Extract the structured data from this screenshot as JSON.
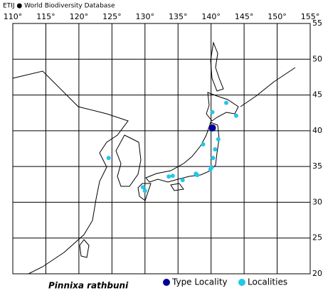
{
  "header": "ETIJ ● World Biodiversity Database",
  "species": "Pinnixa rathbuni",
  "map": {
    "xlim": [
      110,
      155
    ],
    "ylim": [
      20,
      55
    ],
    "grid": true,
    "xticks": [
      {
        "value": 110,
        "label": "110°"
      },
      {
        "value": 115,
        "label": "115°"
      },
      {
        "value": 120,
        "label": "120°"
      },
      {
        "value": 125,
        "label": "125°"
      },
      {
        "value": 130,
        "label": "130°"
      },
      {
        "value": 135,
        "label": "135°"
      },
      {
        "value": 140,
        "label": "140°"
      },
      {
        "value": 145,
        "label": "145°"
      },
      {
        "value": 150,
        "label": "150°"
      },
      {
        "value": 155,
        "label": "155°"
      }
    ],
    "yticks": [
      {
        "value": 20,
        "label": "20°"
      },
      {
        "value": 25,
        "label": "25°"
      },
      {
        "value": 30,
        "label": "30°"
      },
      {
        "value": 35,
        "label": "35°"
      },
      {
        "value": 40,
        "label": "40°"
      },
      {
        "value": 45,
        "label": "45°"
      },
      {
        "value": 50,
        "label": "50°"
      },
      {
        "value": 55,
        "label": "55°"
      }
    ],
    "type_locality": {
      "name": "Type Locality",
      "color": "#000099",
      "lon": [
        140.2
      ],
      "lat": [
        40.4
      ]
    },
    "localities": {
      "name": "Localities",
      "color": "#22c8e8",
      "lon": [
        140.2,
        142.3,
        143.8,
        141.1,
        138.8,
        140.6,
        140.3,
        140.1,
        139.9,
        137.9,
        137.7,
        135.7,
        134.2,
        133.6,
        129.7,
        130.0,
        124.5
      ],
      "lat": [
        42.6,
        43.9,
        42.1,
        38.8,
        38.1,
        37.4,
        36.2,
        34.9,
        34.6,
        33.8,
        34.0,
        33.1,
        33.7,
        33.6,
        32.1,
        31.6,
        36.2
      ]
    }
  }
}
